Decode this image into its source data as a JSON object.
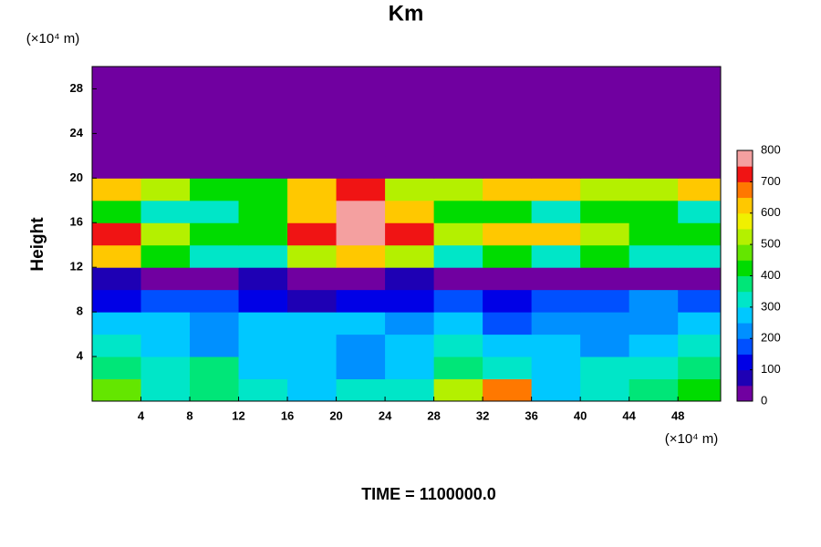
{
  "chart_data": {
    "type": "heatmap",
    "title": "Km",
    "y_unit": "(×10⁴ m)",
    "x_unit": "(×10⁴ m)",
    "ylabel": "Height",
    "footer": "TIME = 1100000.0",
    "xbins": [
      0,
      4,
      8,
      12,
      16,
      20,
      24,
      28,
      32,
      36,
      40,
      44,
      48,
      51.5
    ],
    "ybins": [
      0,
      2,
      4,
      6,
      8,
      10,
      12,
      14,
      16,
      18,
      20,
      22,
      24,
      26,
      28,
      30
    ],
    "z": [
      [
        450,
        300,
        350,
        300,
        250,
        300,
        300,
        500,
        650,
        250,
        300,
        350,
        400
      ],
      [
        350,
        300,
        350,
        250,
        250,
        200,
        250,
        350,
        300,
        250,
        300,
        300,
        350
      ],
      [
        300,
        250,
        200,
        250,
        250,
        200,
        250,
        300,
        250,
        250,
        200,
        250,
        300
      ],
      [
        250,
        250,
        200,
        250,
        250,
        250,
        200,
        250,
        150,
        200,
        200,
        200,
        250
      ],
      [
        100,
        150,
        150,
        100,
        50,
        100,
        100,
        150,
        100,
        150,
        150,
        200,
        150
      ],
      [
        50,
        20,
        20,
        50,
        20,
        20,
        50,
        20,
        20,
        20,
        20,
        20,
        20
      ],
      [
        600,
        400,
        300,
        300,
        500,
        600,
        500,
        300,
        400,
        300,
        400,
        300,
        300
      ],
      [
        700,
        500,
        400,
        400,
        700,
        800,
        700,
        500,
        600,
        600,
        500,
        400,
        400
      ],
      [
        400,
        300,
        300,
        400,
        600,
        800,
        600,
        400,
        400,
        300,
        400,
        400,
        300
      ],
      [
        600,
        500,
        400,
        400,
        600,
        700,
        500,
        500,
        600,
        600,
        500,
        500,
        600
      ],
      [
        0,
        0,
        0,
        0,
        0,
        0,
        0,
        0,
        0,
        0,
        0,
        0,
        0
      ],
      [
        0,
        0,
        0,
        0,
        0,
        0,
        0,
        0,
        0,
        0,
        0,
        0,
        0
      ],
      [
        0,
        0,
        0,
        0,
        0,
        0,
        0,
        0,
        0,
        0,
        0,
        0,
        0
      ],
      [
        0,
        0,
        0,
        0,
        0,
        0,
        0,
        0,
        0,
        0,
        0,
        0,
        0
      ],
      [
        0,
        0,
        0,
        0,
        0,
        0,
        0,
        0,
        0,
        0,
        0,
        0,
        0
      ]
    ],
    "xlim": [
      0,
      51.5
    ],
    "ylim": [
      0,
      30
    ],
    "xticks": [
      4,
      8,
      12,
      16,
      20,
      24,
      28,
      32,
      36,
      40,
      44,
      48
    ],
    "yticks": [
      4,
      8,
      12,
      16,
      20,
      24,
      28
    ],
    "zlim": [
      0,
      800
    ],
    "zticks": [
      0,
      100,
      200,
      300,
      400,
      500,
      600,
      700,
      800
    ],
    "colors": [
      "#7000a0",
      "#1e00b4",
      "#0000e6",
      "#0050ff",
      "#0090ff",
      "#00c8ff",
      "#00e6c8",
      "#00e678",
      "#00dc00",
      "#64e600",
      "#b4f000",
      "#f0f000",
      "#ffc800",
      "#ff7800",
      "#f01414",
      "#f4a0a0"
    ]
  }
}
